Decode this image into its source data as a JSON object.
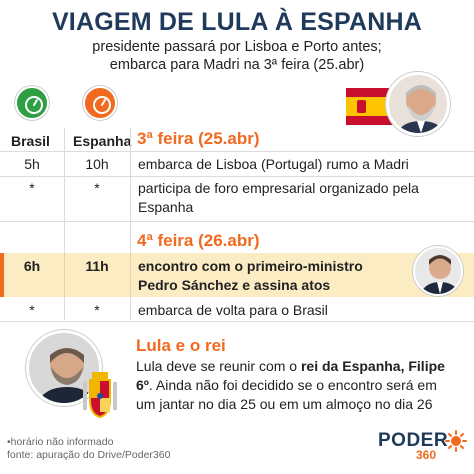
{
  "header": {
    "title": "VIAGEM DE LULA À ESPANHA",
    "subtitle_line1": "presidente passará por Lisboa e Porto antes;",
    "subtitle_line2": "embarca para Madri na 3ª feira (25.abr)"
  },
  "columns": {
    "brasil": "Brasil",
    "espanha": "Espanha",
    "brasil_color": "#2ea043",
    "espanha_color": "#f06a20"
  },
  "days": [
    {
      "label": "3ª feira (25.abr)",
      "rows": [
        {
          "br": "5h",
          "es": "10h",
          "text1": "embarca de Lisboa (Portugal) rumo a Madri",
          "text2": ""
        },
        {
          "br": "*",
          "es": "*",
          "text1": "participa de foro empresarial organizado pela",
          "text2": "Espanha"
        }
      ]
    },
    {
      "label": "4ª feira (26.abr)",
      "rows": [
        {
          "br": "6h",
          "es": "11h",
          "text1": "encontro com o primeiro-ministro",
          "text2": "Pedro Sánchez e assina atos"
        },
        {
          "br": "*",
          "es": "*",
          "text1": "embarca de volta para o Brasil",
          "text2": ""
        }
      ]
    }
  ],
  "note": {
    "title": "Lula e o rei",
    "line1_a": "Lula deve se reunir com o ",
    "line1_b": "rei da Espanha, Filipe",
    "line2_a": "6º",
    "line2_b": ". Ainda não foi decidido se o encontro será em",
    "line3": "um jantar no dia 25 ou em um almoço no dia 26"
  },
  "footer": {
    "line1": "•horário não informado",
    "line2": "fonte: apuração do Drive/Poder360"
  },
  "logo": {
    "main": "PODER",
    "sub": "360"
  },
  "colors": {
    "accent": "#f06a20",
    "title": "#1f3a5a",
    "highlight": "#fcecc4"
  }
}
